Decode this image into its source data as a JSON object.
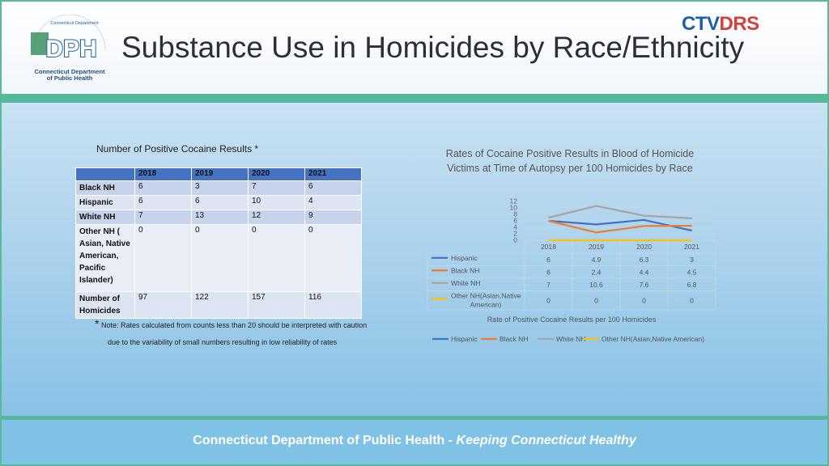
{
  "header": {
    "title": "Substance Use in Homicides by Race/Ethnicity",
    "logo_text": "DPH",
    "logo_arc": "Connecticut Department",
    "logo_sub1": "Connecticut Department",
    "logo_sub2": "of Public Health",
    "ctvdrs_ct": "CTV",
    "ctvdrs_rest": "DRS"
  },
  "table": {
    "title": "Number of Positive Cocaine Results *",
    "headers": [
      "",
      "2018",
      "2019",
      "2020",
      "2021"
    ],
    "rows": [
      {
        "label": "Black NH",
        "values": [
          "6",
          "3",
          "7",
          "6"
        ]
      },
      {
        "label": "Hispanic",
        "values": [
          "6",
          "6",
          "10",
          "4"
        ]
      },
      {
        "label": "White NH",
        "values": [
          "7",
          "13",
          "12",
          "9"
        ]
      },
      {
        "label": "Other NH ( Asian, Native American, Pacific Islander)",
        "values": [
          "0",
          "0",
          "0",
          "0"
        ]
      },
      {
        "label": "Number of Homicides",
        "values": [
          "97",
          "122",
          "157",
          "116"
        ]
      }
    ],
    "note_star": "*",
    "note_line1": "Note: Rates calculated  from counts less than 20 should be interpreted with caution",
    "note_line2": "due to the variability of small numbers resulting in low reliability of rates"
  },
  "chart_data": {
    "type": "line",
    "title": "Rates of Cocaine Positive Results in Blood of Homicide Victims at Time of Autopsy per 100 Homicides by Race",
    "xlabel": "Rate of Positive Cocaine Results per 100 Homicides",
    "categories": [
      "2018",
      "2019",
      "2020",
      "2021"
    ],
    "ylim": [
      0,
      12
    ],
    "yticks": [
      "0",
      "2",
      "4",
      "6",
      "8",
      "10",
      "12"
    ],
    "series": [
      {
        "name": "Hispanic",
        "values": [
          6,
          4.9,
          6.3,
          3
        ],
        "labels": [
          "6",
          "4.9",
          "6.3",
          "3"
        ],
        "color": "#4472c4"
      },
      {
        "name": "Black NH",
        "values": [
          6,
          2.4,
          4.4,
          4.5
        ],
        "labels": [
          "6",
          "2.4",
          "4.4",
          "4.5"
        ],
        "color": "#ed7d31"
      },
      {
        "name": "White NH",
        "values": [
          7,
          10.6,
          7.6,
          6.8
        ],
        "labels": [
          "7",
          "10.6",
          "7.6",
          "6.8"
        ],
        "color": "#a5a5a5"
      },
      {
        "name": "Other NH(Asian,Native American)",
        "values": [
          0,
          0,
          0,
          0
        ],
        "labels": [
          "0",
          "0",
          "0",
          "0"
        ],
        "color": "#ffc000"
      }
    ],
    "grid": true,
    "legend": "bottom"
  },
  "footer": {
    "text": "Connecticut Department of Public Health",
    "separator": " - ",
    "tagline": "Keeping Connecticut Healthy"
  }
}
